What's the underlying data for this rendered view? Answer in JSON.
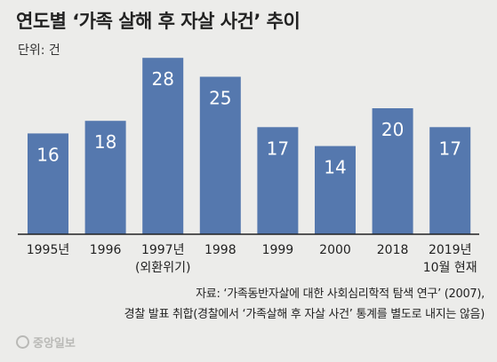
{
  "title": "연도별 ‘가족 살해 후 자살 사건’ 추이",
  "unit_label": "단위: 건",
  "chart_data": {
    "type": "bar",
    "categories": [
      "1995년",
      "1996",
      "1997년",
      "1998",
      "1999",
      "2000",
      "2018",
      "2019년"
    ],
    "category_sublabels": [
      "",
      "",
      "(외환위기)",
      "",
      "",
      "",
      "",
      "10월 현재"
    ],
    "values": [
      16,
      18,
      28,
      25,
      17,
      14,
      20,
      17
    ],
    "data_labels": [
      "16",
      "18",
      "28",
      "25",
      "17",
      "14",
      "20",
      "17"
    ],
    "ylim": [
      0,
      30
    ],
    "grid": false,
    "colors": {
      "bar": "#5578ae",
      "label": "#ffffff",
      "baseline": "#222222"
    }
  },
  "source": {
    "line1": "자료: ‘가족동반자살에 대한 사회심리학적 탐색 연구’ (2007),",
    "line2": "경찰 발표 취합(경찰에서 ‘가족살해 후 자살 사건’ 통계를 별도로 내지는 않음)"
  },
  "logo": {
    "text": "중앙일보"
  }
}
